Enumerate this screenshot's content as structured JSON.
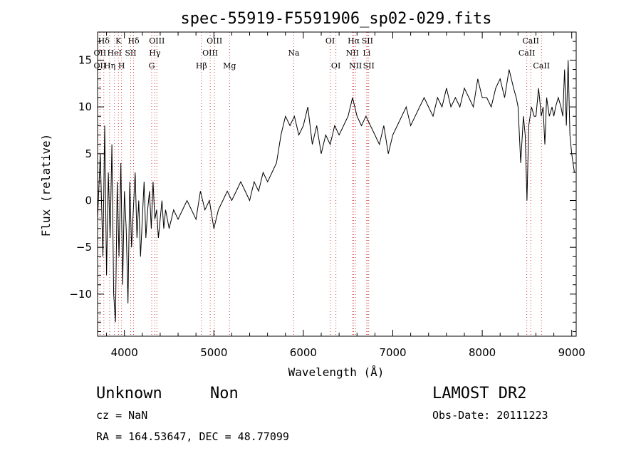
{
  "chart_data": {
    "type": "line",
    "title": "spec-55919-F5591906_sp02-029.fits",
    "xlabel": "Wavelength (Å)",
    "ylabel": "Flux (relative)",
    "xlim": [
      3700,
      9050
    ],
    "ylim": [
      -14.5,
      18
    ],
    "xticks": [
      4000,
      5000,
      6000,
      7000,
      8000,
      9000
    ],
    "yticks": [
      -10,
      -5,
      0,
      5,
      10,
      15
    ],
    "grid": false,
    "series": [
      {
        "name": "",
        "color": "#000000",
        "x": [
          3700,
          3730,
          3760,
          3780,
          3800,
          3820,
          3840,
          3860,
          3880,
          3900,
          3920,
          3940,
          3960,
          3980,
          4000,
          4020,
          4040,
          4060,
          4080,
          4100,
          4120,
          4140,
          4160,
          4180,
          4200,
          4220,
          4240,
          4260,
          4280,
          4300,
          4320,
          4340,
          4360,
          4380,
          4400,
          4420,
          4440,
          4460,
          4480,
          4500,
          4550,
          4600,
          4650,
          4700,
          4750,
          4800,
          4850,
          4900,
          4950,
          5000,
          5050,
          5100,
          5150,
          5200,
          5250,
          5300,
          5350,
          5400,
          5450,
          5500,
          5550,
          5600,
          5650,
          5700,
          5750,
          5800,
          5850,
          5900,
          5950,
          6000,
          6050,
          6100,
          6150,
          6200,
          6250,
          6300,
          6350,
          6400,
          6450,
          6500,
          6550,
          6600,
          6650,
          6700,
          6750,
          6800,
          6850,
          6900,
          6950,
          7000,
          7050,
          7100,
          7150,
          7200,
          7250,
          7300,
          7350,
          7400,
          7450,
          7500,
          7550,
          7600,
          7650,
          7700,
          7750,
          7800,
          7850,
          7900,
          7950,
          8000,
          8050,
          8100,
          8150,
          8200,
          8250,
          8300,
          8350,
          8380,
          8400,
          8430,
          8460,
          8480,
          8500,
          8520,
          8550,
          8580,
          8600,
          8630,
          8660,
          8680,
          8700,
          8720,
          8750,
          8780,
          8800,
          8820,
          8850,
          8880,
          8900,
          8920,
          8940,
          8960,
          8980,
          9000,
          9030
        ],
        "y": [
          -2,
          5,
          -6,
          8,
          -8,
          3,
          -4,
          6,
          -10,
          -13,
          2,
          -6,
          4,
          -9,
          1,
          -3,
          -11,
          2,
          -5,
          -1,
          3,
          -4,
          0,
          -6,
          -2,
          2,
          -4,
          -1,
          1,
          -3,
          2,
          -2,
          -1,
          -4,
          -2,
          0,
          -3,
          -1,
          -2,
          -3,
          -1,
          -2,
          -1,
          0,
          -1,
          -2,
          1,
          -1,
          0,
          -3,
          -1,
          0,
          1,
          0,
          1,
          2,
          1,
          0,
          2,
          1,
          3,
          2,
          3,
          4,
          7,
          9,
          8,
          9,
          7,
          8,
          10,
          6,
          8,
          5,
          7,
          6,
          8,
          7,
          8,
          9,
          11,
          9,
          8,
          9,
          8,
          7,
          6,
          8,
          5,
          7,
          8,
          9,
          10,
          8,
          9,
          10,
          11,
          10,
          9,
          11,
          10,
          12,
          10,
          11,
          10,
          12,
          11,
          10,
          13,
          11,
          11,
          10,
          12,
          13,
          11,
          14,
          12,
          11,
          10,
          4,
          9,
          7,
          0,
          8,
          10,
          9,
          9,
          12,
          9,
          10,
          6,
          11,
          9,
          10,
          9,
          10,
          11,
          10,
          9,
          14,
          8,
          15,
          7,
          5,
          3
        ]
      }
    ],
    "lines": {
      "top": [
        {
          "label": "Hδ",
          "x": 3770
        },
        {
          "label": "K",
          "x": 3933
        },
        {
          "label": "Hδ",
          "x": 4102
        },
        {
          "label": "OIII",
          "x": 4363
        },
        {
          "label": "OIII",
          "x": 5007
        },
        {
          "label": "OI",
          "x": 6300
        },
        {
          "label": "Hα",
          "x": 6563
        },
        {
          "label": "SII",
          "x": 6716
        },
        {
          "label": "CaII",
          "x": 8542
        }
      ],
      "middle": [
        {
          "label": "OII",
          "x": 3727
        },
        {
          "label": "HeI",
          "x": 3889
        },
        {
          "label": "SII",
          "x": 4070
        },
        {
          "label": "Hγ",
          "x": 4340
        },
        {
          "label": "OIII",
          "x": 4959
        },
        {
          "label": "Na",
          "x": 5893
        },
        {
          "label": "NII",
          "x": 6548
        },
        {
          "label": "Li",
          "x": 6708
        },
        {
          "label": "CaII",
          "x": 8498
        }
      ],
      "bottom": [
        {
          "label": "OII",
          "x": 3727
        },
        {
          "label": "Hη",
          "x": 3835
        },
        {
          "label": "H",
          "x": 3968
        },
        {
          "label": "G",
          "x": 4305
        },
        {
          "label": "Hβ",
          "x": 4861
        },
        {
          "label": "Mg",
          "x": 5175
        },
        {
          "label": "OI",
          "x": 6364
        },
        {
          "label": "NII",
          "x": 6583
        },
        {
          "label": "SII",
          "x": 6731
        },
        {
          "label": "CaII",
          "x": 8662
        }
      ]
    }
  },
  "info": {
    "class": "Unknown",
    "subclass": "Non",
    "release": "LAMOST DR2",
    "cz": "cz = NaN",
    "obs_date": "Obs-Date: 20111223",
    "coords": "RA = 164.53647, DEC =  48.77099"
  }
}
